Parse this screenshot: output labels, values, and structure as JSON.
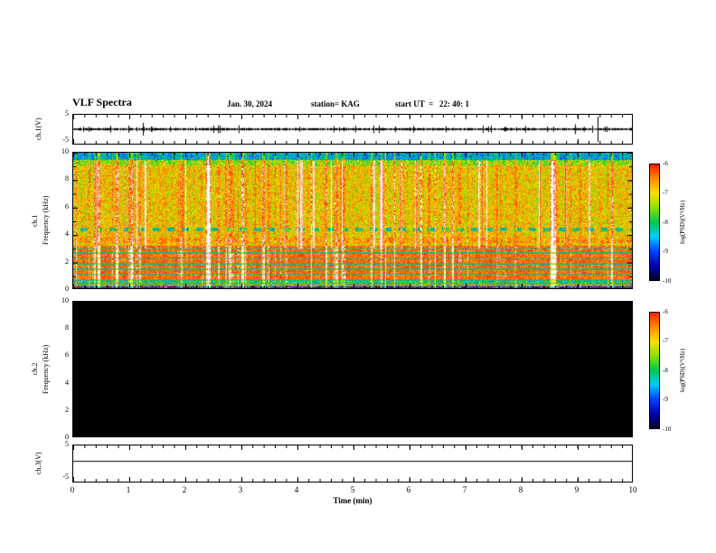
{
  "header": {
    "title": "VLF Spectra",
    "date": "Jan. 30, 2024",
    "station": "station= KAG",
    "start_ut": "start UT  =   22: 40: 1"
  },
  "axes": {
    "x": {
      "label": "Time (min)",
      "ticks": [
        "0",
        "1",
        "2",
        "3",
        "4",
        "5",
        "6",
        "7",
        "8",
        "9",
        "10"
      ]
    },
    "freq_ticks": [
      "10",
      "8",
      "6",
      "4",
      "2",
      "0"
    ],
    "volt_max": "5",
    "volt_min": "-5"
  },
  "panels": {
    "ch1_wave": {
      "ylabel": "ch.1(V)"
    },
    "ch1_spec": {
      "channel": "ch.1",
      "ylabel": "Frequency (kHz)"
    },
    "ch2_spec": {
      "channel": "ch.2",
      "ylabel": "Frequency (kHz)"
    },
    "ch3_wave": {
      "ylabel": "ch.3(V)"
    }
  },
  "colorbar": {
    "label": "log(PSD)(V²/Hz)",
    "ticks": [
      "-6",
      "-7",
      "-8",
      "-9",
      "-10"
    ],
    "colors": [
      "#ff1e00",
      "#ff8c00",
      "#ffe000",
      "#8ce000",
      "#00c850",
      "#00ccff",
      "#0040ff",
      "#0000aa",
      "#000028"
    ]
  },
  "chart_data": [
    {
      "type": "line",
      "title": "ch.1(V) time series",
      "xlabel": "Time (min)",
      "ylabel": "ch.1(V)",
      "xlim": [
        0,
        10
      ],
      "ylim": [
        -5,
        5
      ],
      "description": "Dense noisy trace centered on 0 V with many small impulsive spikes (~0.3-1.5 V) throughout; occasional larger spikes, largest near t = 9.55 min reaching several volts."
    },
    {
      "type": "heatmap",
      "title": "ch.1 VLF spectrogram",
      "xlabel": "Time (min)",
      "ylabel": "Frequency (kHz)",
      "xlim": [
        0,
        10
      ],
      "ylim": [
        0,
        10
      ],
      "zlabel": "log(PSD)(V²/Hz)",
      "zlim": [
        -10,
        -6
      ],
      "description": "Broadband noise: high PSD (red/orange, ~-6 to -7) from ~0.5 to 3 kHz crossed by thin dark horizontal stripes; mixed red/yellow/green speckle from 3 to 9 kHz; many bright white vertical striations across the record; low-PSD cyan/blue/green band above ~9.5 kHz; near-black band below ~0.2 kHz with a red line near 0.25 kHz; dashed darker band near 4.3-4.5 kHz."
    },
    {
      "type": "heatmap",
      "title": "ch.2 VLF spectrogram",
      "xlabel": "Time (min)",
      "ylabel": "Frequency (kHz)",
      "xlim": [
        0,
        10
      ],
      "ylim": [
        0,
        10
      ],
      "zlabel": "log(PSD)(V²/Hz)",
      "zlim": [
        -10,
        -6
      ],
      "description": "No signal: uniformly at or below -10 (solid black) for all frequencies and times."
    },
    {
      "type": "line",
      "title": "ch.3(V) time series",
      "xlabel": "Time (min)",
      "ylabel": "ch.3(V)",
      "xlim": [
        0,
        10
      ],
      "ylim": [
        -5,
        5
      ],
      "description": "Constant flat line slightly above 0 V (~+0.5 V) for the full 10 minutes."
    }
  ]
}
